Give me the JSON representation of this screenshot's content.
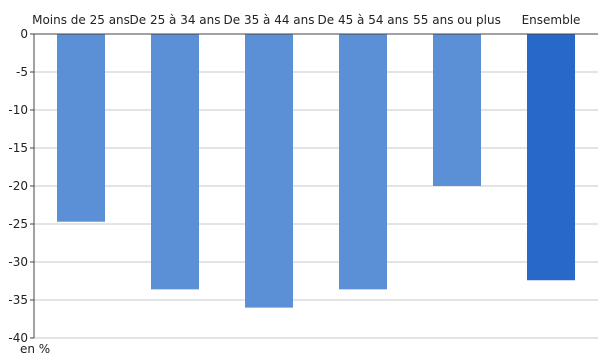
{
  "chart_data": {
    "type": "bar",
    "categories": [
      "Moins de 25 ans",
      "De 25 à 34 ans",
      "De 35 à 44 ans",
      "De 45 à 54 ans",
      "55 ans ou plus",
      "Ensemble"
    ],
    "values": [
      -24.7,
      -33.6,
      -36.0,
      -33.6,
      -20.0,
      -32.4
    ],
    "y_ticks": [
      "0",
      "-5",
      "-10",
      "-15",
      "-20",
      "-25",
      "-30",
      "-35",
      "-40"
    ],
    "ylim": [
      -40,
      0
    ],
    "unit_label": "en %",
    "grid": true,
    "category_axis_position": "top",
    "colors": {
      "bar": "#5b8fd6",
      "highlight_bar": "#2868c8",
      "grid": "#c8c8c8",
      "axis": "#444444"
    },
    "highlight_category": "Ensemble"
  }
}
